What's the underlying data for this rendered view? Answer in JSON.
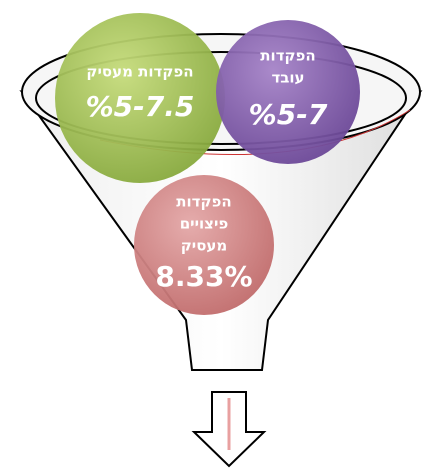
{
  "nodes": [
    {
      "label": [
        "הפקדות מעסיק"
      ],
      "value": "%5-7.5"
    },
    {
      "label": [
        "הפקדות",
        "עובד"
      ],
      "value": "%5-7"
    },
    {
      "label": [
        "הפקדות",
        "פיצויים",
        "מעסיק"
      ],
      "value": "8.33%"
    }
  ]
}
